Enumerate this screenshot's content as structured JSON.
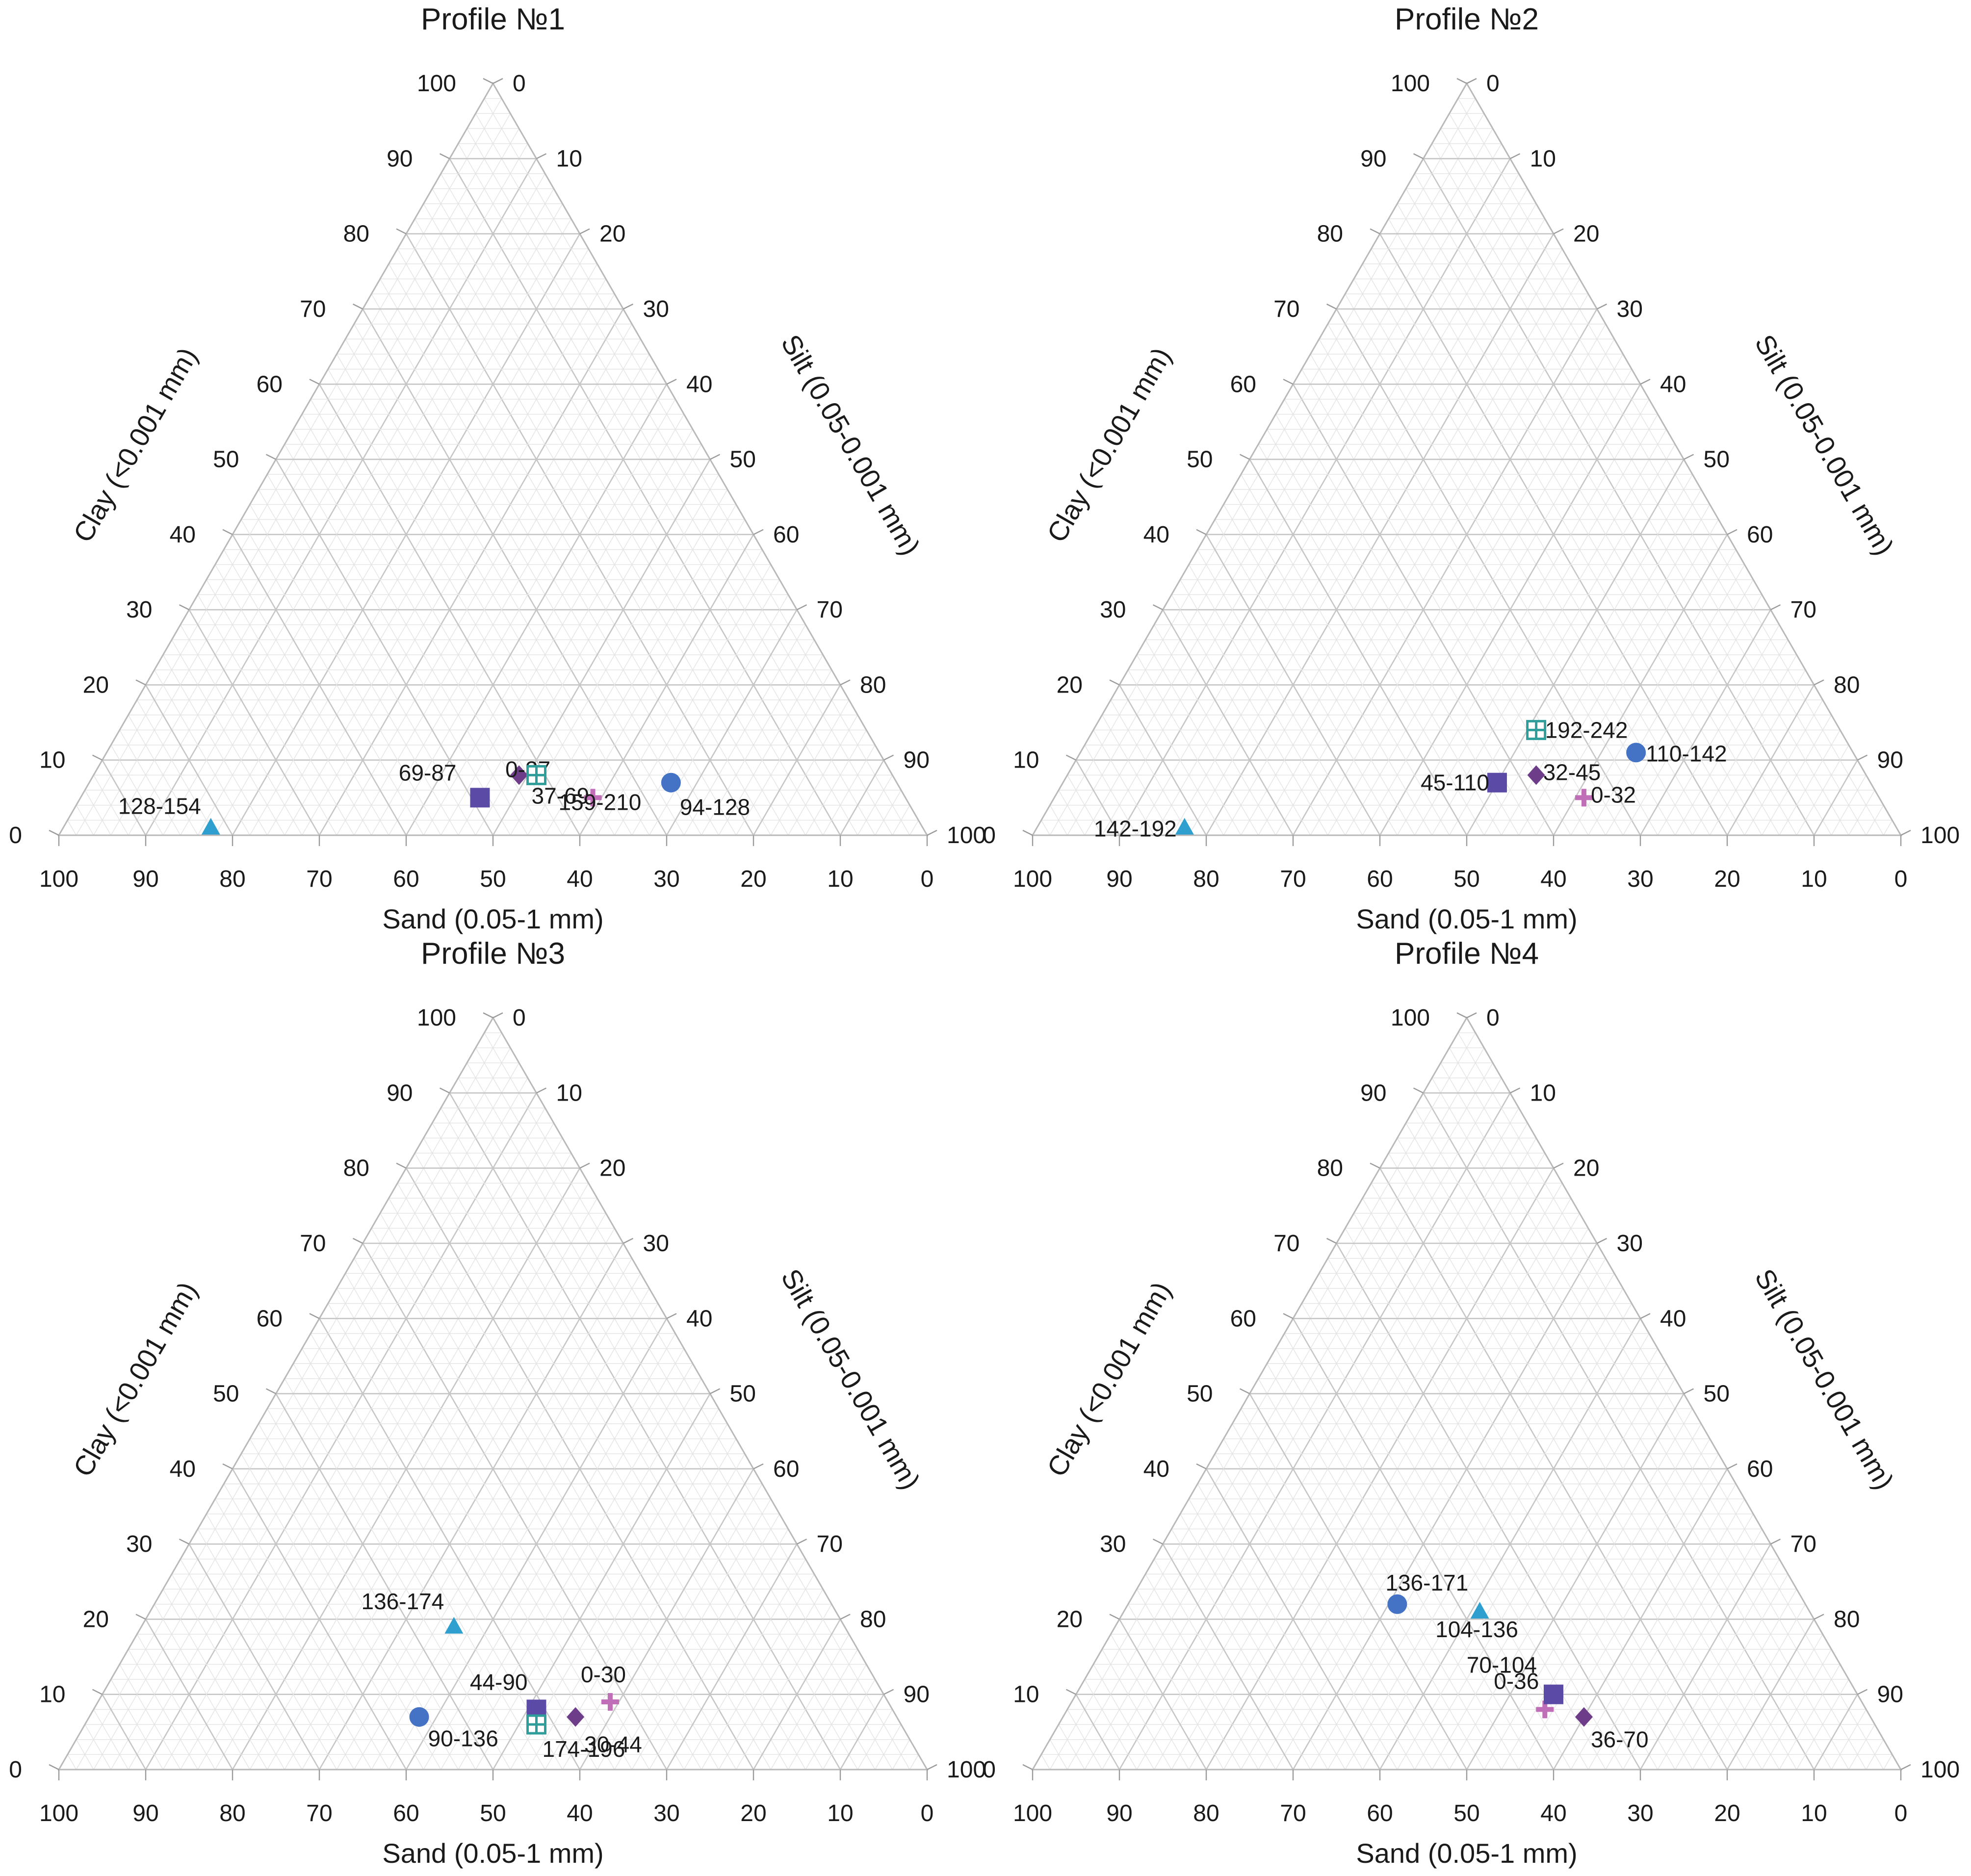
{
  "colors": {
    "circle": "#4472c4",
    "triangle": "#2e9fcf",
    "square": "#5b4ba6",
    "diamond": "#6e3d8a",
    "plus": "#c06eb8",
    "boxed_plus": "#2f9e9b",
    "grid_minor": "#e4e4e4",
    "grid_major": "#c6c6c6"
  },
  "chart_data": [
    {
      "type": "scatter",
      "subtype": "ternary",
      "title": "Profile №1",
      "axes": {
        "sand": "Sand (0.05-1 mm)",
        "silt": "Silt (0.05-0.001 mm)",
        "clay": "Clay (<0.001 mm)"
      },
      "ticks": [
        "0",
        "10",
        "20",
        "30",
        "40",
        "50",
        "60",
        "70",
        "80",
        "90",
        "100"
      ],
      "grid": true,
      "points": [
        {
          "label": "0-37",
          "marker": "diamond",
          "sand": 43,
          "silt": 49,
          "clay": 8
        },
        {
          "label": "37-69",
          "marker": "boxed_plus",
          "sand": 41,
          "silt": 51,
          "clay": 8
        },
        {
          "label": "69-87",
          "marker": "square",
          "sand": 49,
          "silt": 46,
          "clay": 5
        },
        {
          "label": "94-128",
          "marker": "circle",
          "sand": 26,
          "silt": 67,
          "clay": 7
        },
        {
          "label": "128-154",
          "marker": "triangle",
          "sand": 82,
          "silt": 17,
          "clay": 1
        },
        {
          "label": "159-210",
          "marker": "plus",
          "sand": 36,
          "silt": 59,
          "clay": 5
        }
      ]
    },
    {
      "type": "scatter",
      "subtype": "ternary",
      "title": "Profile №2",
      "axes": {
        "sand": "Sand (0.05-1 mm)",
        "silt": "Silt (0.05-0.001 mm)",
        "clay": "Clay (<0.001 mm)"
      },
      "ticks": [
        "0",
        "10",
        "20",
        "30",
        "40",
        "50",
        "60",
        "70",
        "80",
        "90",
        "100"
      ],
      "grid": true,
      "points": [
        {
          "label": "0-32",
          "marker": "plus",
          "sand": 34,
          "silt": 61,
          "clay": 5
        },
        {
          "label": "32-45",
          "marker": "diamond",
          "sand": 38,
          "silt": 54,
          "clay": 8
        },
        {
          "label": "45-110",
          "marker": "square",
          "sand": 43,
          "silt": 50,
          "clay": 7
        },
        {
          "label": "110-142",
          "marker": "circle",
          "sand": 25,
          "silt": 64,
          "clay": 11
        },
        {
          "label": "142-192",
          "marker": "triangle",
          "sand": 82,
          "silt": 17,
          "clay": 1
        },
        {
          "label": "192-242",
          "marker": "boxed_plus",
          "sand": 35,
          "silt": 51,
          "clay": 14
        }
      ]
    },
    {
      "type": "scatter",
      "subtype": "ternary",
      "title": "Profile №3",
      "axes": {
        "sand": "Sand (0.05-1 mm)",
        "silt": "Silt (0.05-0.001 mm)",
        "clay": "Clay (<0.001 mm)"
      },
      "ticks": [
        "0",
        "10",
        "20",
        "30",
        "40",
        "50",
        "60",
        "70",
        "80",
        "90",
        "100"
      ],
      "grid": true,
      "points": [
        {
          "label": "0-30",
          "marker": "plus",
          "sand": 32,
          "silt": 59,
          "clay": 9
        },
        {
          "label": "30-44",
          "marker": "diamond",
          "sand": 37,
          "silt": 56,
          "clay": 7
        },
        {
          "label": "44-90",
          "marker": "square",
          "sand": 41,
          "silt": 51,
          "clay": 8
        },
        {
          "label": "90-136",
          "marker": "circle",
          "sand": 55,
          "silt": 38,
          "clay": 7
        },
        {
          "label": "136-174",
          "marker": "triangle",
          "sand": 45,
          "silt": 36,
          "clay": 19
        },
        {
          "label": "174-196",
          "marker": "boxed_plus",
          "sand": 42,
          "silt": 52,
          "clay": 6
        }
      ]
    },
    {
      "type": "scatter",
      "subtype": "ternary",
      "title": "Profile №4",
      "axes": {
        "sand": "Sand (0.05-1 mm)",
        "silt": "Silt (0.05-0.001 mm)",
        "clay": "Clay (<0.001 mm)"
      },
      "ticks": [
        "0",
        "10",
        "20",
        "30",
        "40",
        "50",
        "60",
        "70",
        "80",
        "90",
        "100"
      ],
      "grid": true,
      "points": [
        {
          "label": "0-36",
          "marker": "plus",
          "sand": 37,
          "silt": 55,
          "clay": 8
        },
        {
          "label": "36-70",
          "marker": "diamond",
          "sand": 33,
          "silt": 60,
          "clay": 7
        },
        {
          "label": "70-104",
          "marker": "square",
          "sand": 35,
          "silt": 55,
          "clay": 10
        },
        {
          "label": "104-136",
          "marker": "triangle",
          "sand": 38,
          "silt": 41,
          "clay": 21
        },
        {
          "label": "136-171",
          "marker": "circle",
          "sand": 47,
          "silt": 31,
          "clay": 22
        }
      ]
    }
  ]
}
